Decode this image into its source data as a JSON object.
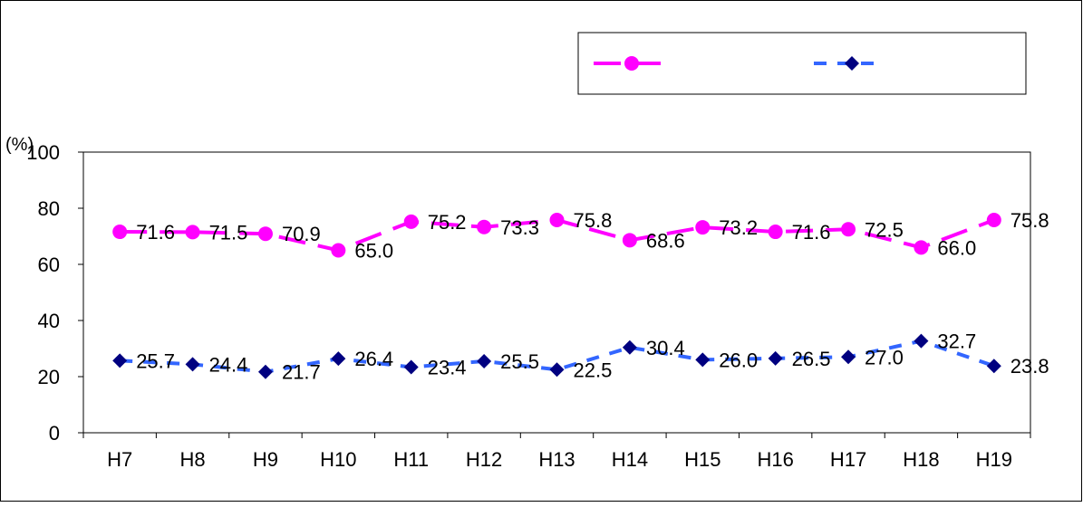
{
  "chart_data": {
    "type": "line",
    "categories": [
      "H7",
      "H8",
      "H9",
      "H10",
      "H11",
      "H12",
      "H13",
      "H14",
      "H15",
      "H16",
      "H17",
      "H18",
      "H19"
    ],
    "ylabel": "(%)",
    "ylim": [
      0,
      100
    ],
    "yticks": [
      "0",
      "20",
      "40",
      "60",
      "80",
      "100"
    ],
    "grid": false,
    "legend": "top-right",
    "series": [
      {
        "values": [
          71.6,
          71.5,
          70.9,
          65.0,
          75.2,
          73.3,
          75.8,
          68.6,
          73.2,
          71.6,
          72.5,
          66.0,
          75.8
        ],
        "labels": [
          "71.6",
          "71.5",
          "70.9",
          "65.0",
          "75.2",
          "73.3",
          "75.8",
          "68.6",
          "73.2",
          "71.6",
          "72.5",
          "66.0",
          "75.8"
        ],
        "color": "#ff00ff",
        "marker": "circle",
        "line_style": "long-dash"
      },
      {
        "values": [
          25.7,
          24.4,
          21.7,
          26.4,
          23.4,
          25.5,
          22.5,
          30.4,
          26.0,
          26.5,
          27.0,
          32.7,
          23.8
        ],
        "labels": [
          "25.7",
          "24.4",
          "21.7",
          "26.4",
          "23.4",
          "25.5",
          "22.5",
          "30.4",
          "26.0",
          "26.5",
          "27.0",
          "32.7",
          "23.8"
        ],
        "color": "#3366ff",
        "marker_color": "#000080",
        "marker": "diamond",
        "line_style": "dash"
      }
    ]
  }
}
